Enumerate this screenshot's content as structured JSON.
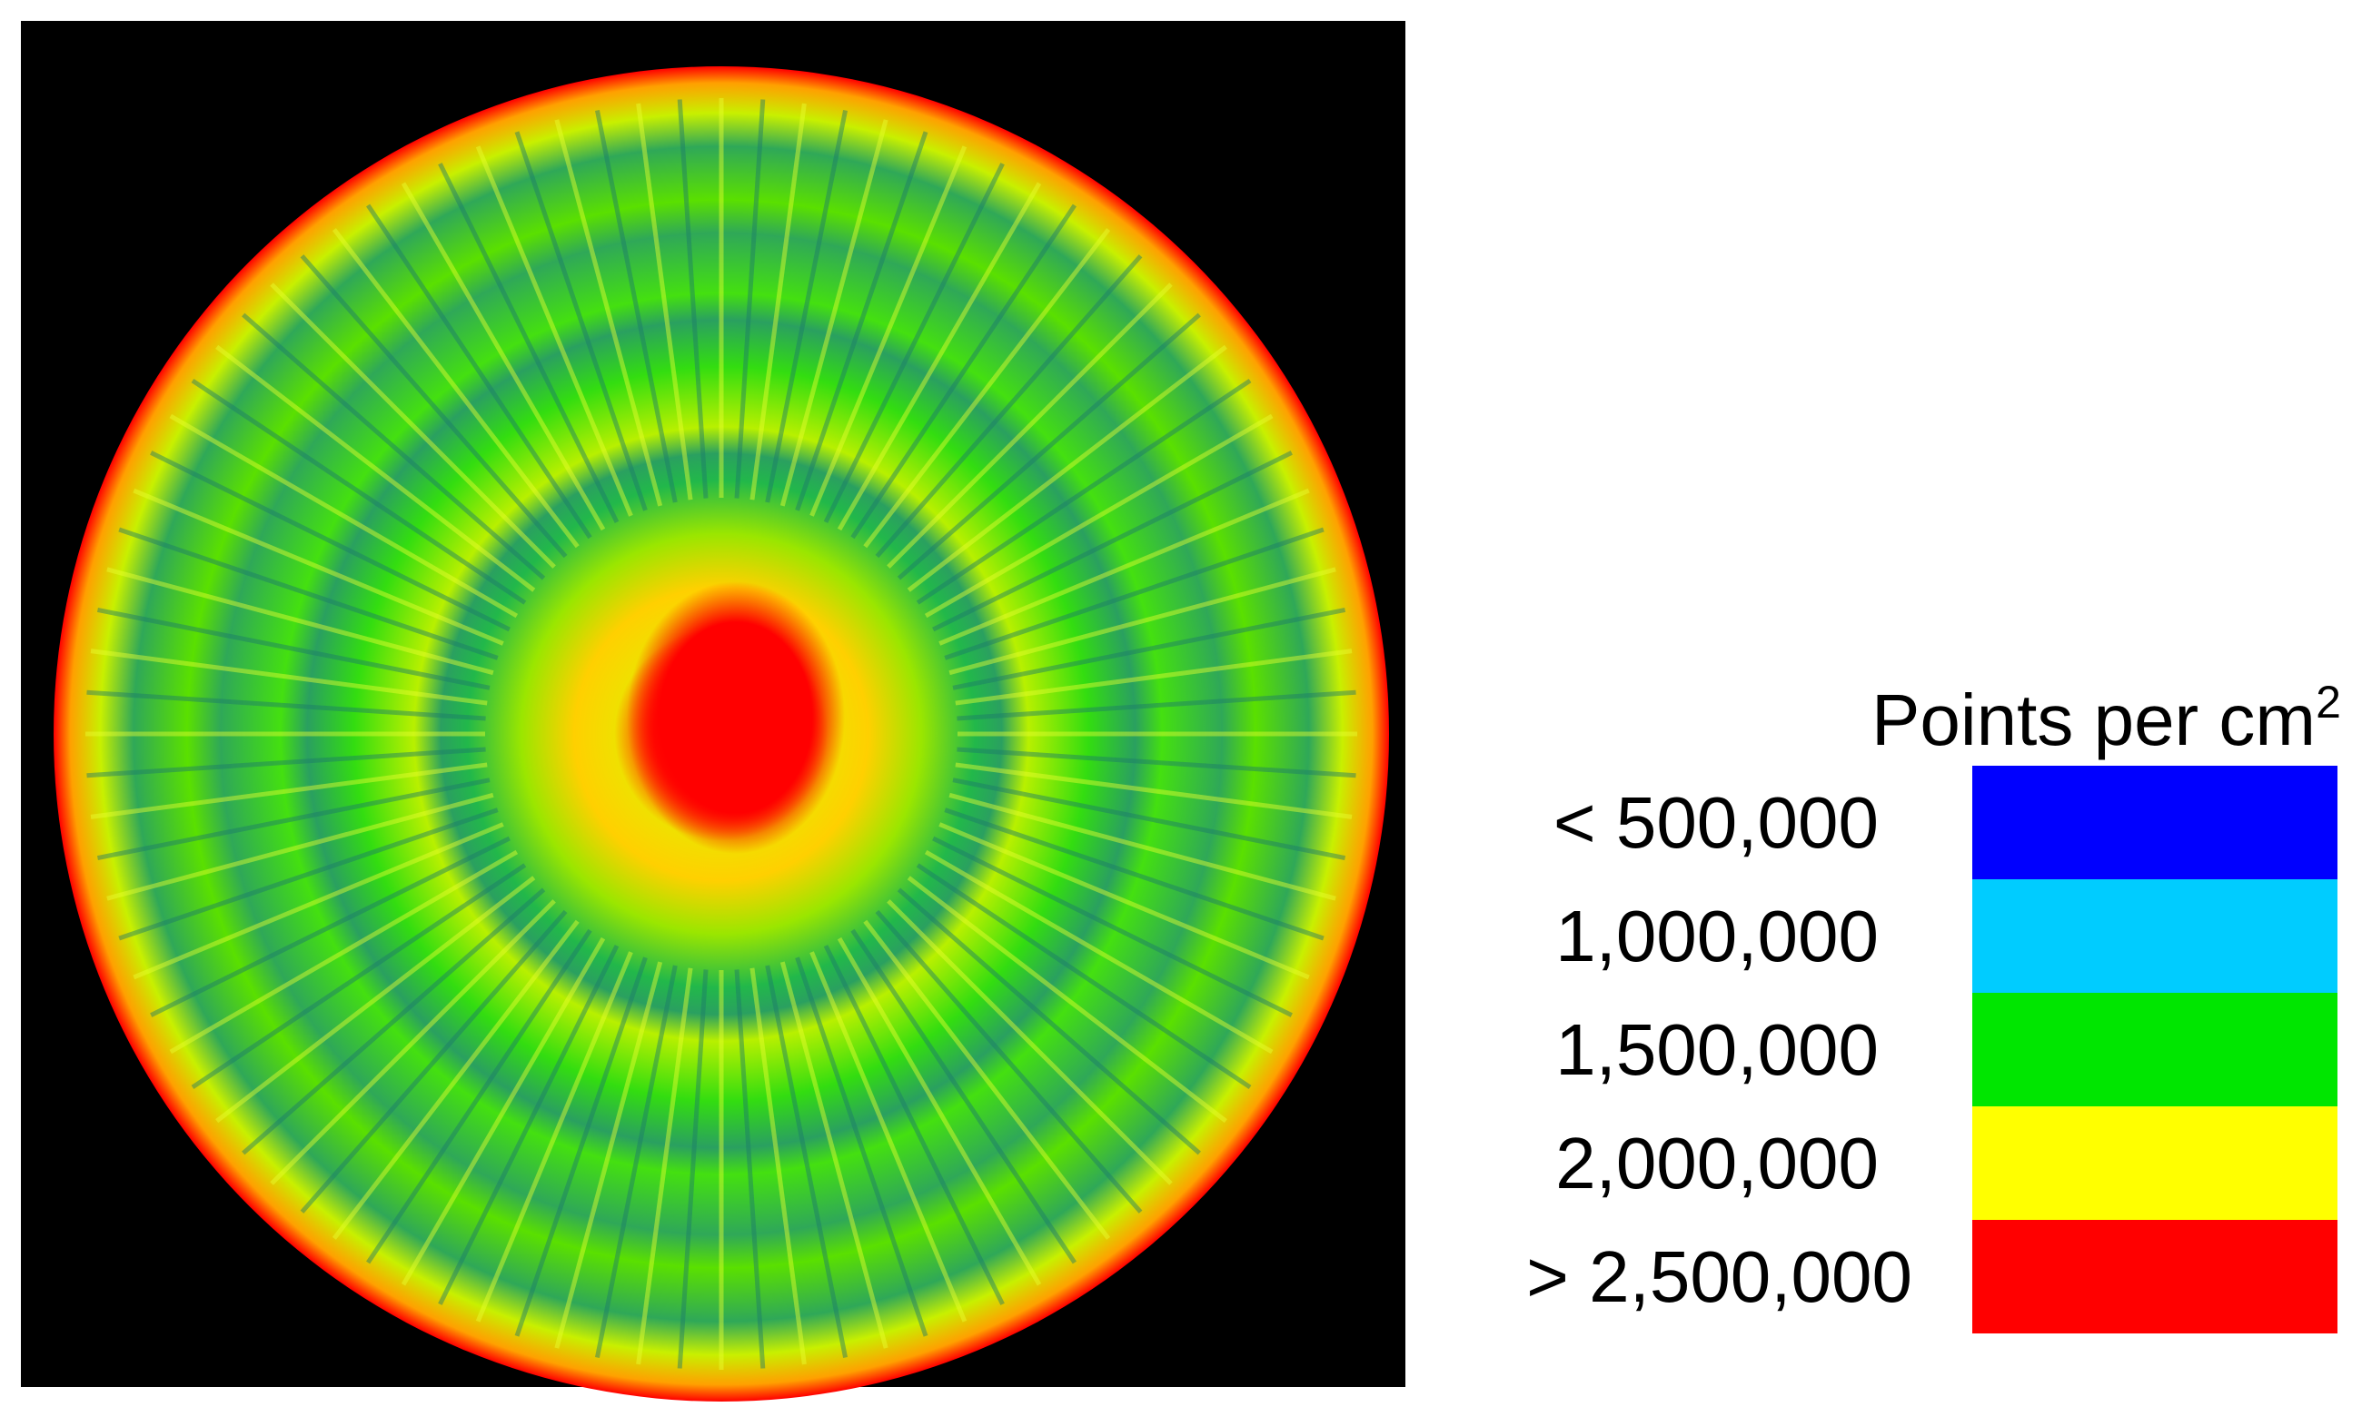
{
  "legend": {
    "title": "Points per cm",
    "title_superscript": "2",
    "items": [
      {
        "label": "< 500,000",
        "color": "#0000ff"
      },
      {
        "label": "1,000,000",
        "color": "#00ccff"
      },
      {
        "label": "1,500,000",
        "color": "#00e600"
      },
      {
        "label": "2,000,000",
        "color": "#ffff00"
      },
      {
        "label": "> 2,500,000",
        "color": "#ff0000"
      }
    ]
  }
}
